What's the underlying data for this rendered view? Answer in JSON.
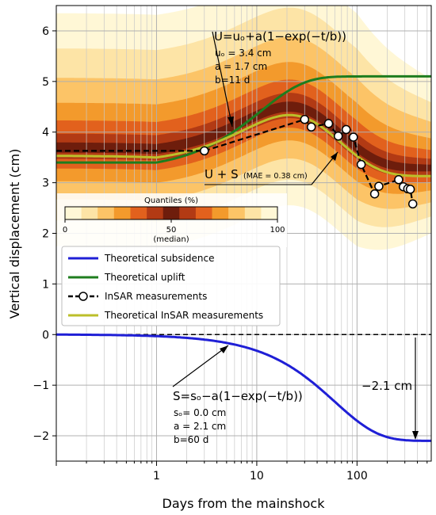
{
  "chart_data": {
    "type": "line",
    "xlabel": "Days from the mainshock",
    "ylabel": "Vertical displacement (cm)",
    "x_scale": "log",
    "xlim": [
      0.1,
      550
    ],
    "ylim": [
      -2.5,
      6.5
    ],
    "x_ticks": [
      1,
      10,
      100
    ],
    "x_tick_labels": [
      "1",
      "10",
      "100"
    ],
    "y_ticks": [
      -2,
      -1,
      0,
      1,
      2,
      3,
      4,
      5,
      6
    ],
    "y_tick_labels": [
      "−2",
      "−1",
      "0",
      "1",
      "2",
      "3",
      "4",
      "5",
      "6"
    ],
    "grid": true,
    "colors": {
      "subsidence": "#1f1fd6",
      "uplift": "#1e7d1e",
      "insar_model": "#bcbf2a",
      "measurements": "#000000",
      "quantile_bands": [
        "#fff7d6",
        "#fde4a6",
        "#fcc467",
        "#f39a2c",
        "#e2611d",
        "#b23a14",
        "#6e1d0c"
      ]
    },
    "quantile_legend": {
      "title": "Quantiles (%)",
      "tick_labels": [
        "0",
        "50",
        "100"
      ],
      "median_label": "(median)"
    },
    "legend": {
      "placement": "center-left",
      "entries": [
        {
          "label": "Theoretical subsidence",
          "color": "#1f1fd6",
          "style": "line"
        },
        {
          "label": "Theoretical uplift",
          "color": "#1e7d1e",
          "style": "line"
        },
        {
          "label": "InSAR measurements",
          "color": "#000000",
          "style": "dashed-markers"
        },
        {
          "label": "Theoretical InSAR measurements",
          "color": "#bcbf2a",
          "style": "line"
        }
      ]
    },
    "annotations": {
      "uplift_equation": "U=uₒ+a(1−exp(−t/b))",
      "uplift_params": [
        "uₒ = 3.4 cm",
        "a = 1.7 cm",
        "b=11 d"
      ],
      "sum_label": "U + S",
      "sum_mae": "(MAE = 0.38 cm)",
      "subsidence_equation": "S=sₒ−a(1−exp(−t/b))",
      "subsidence_params": [
        "sₒ= 0.0 cm",
        "a = 2.1 cm",
        "b=60 d"
      ],
      "offset_label": "−2.1 cm"
    },
    "models": {
      "uplift": {
        "u0": 3.4,
        "a": 1.7,
        "b": 11,
        "start_day": 1
      },
      "subsidence": {
        "s0": 0.0,
        "a": 2.1,
        "b": 60,
        "start_day": 0.1
      },
      "insar_baseline": 3.53
    },
    "measurements_pre": {
      "x": [
        0.1,
        2.2
      ],
      "y": [
        3.63,
        3.63
      ]
    },
    "measurements": {
      "x": [
        3,
        30,
        35,
        52,
        65,
        78,
        92,
        110,
        150,
        165,
        260,
        290,
        320,
        340,
        360
      ],
      "y": [
        3.63,
        4.25,
        4.1,
        4.17,
        3.92,
        4.05,
        3.9,
        3.36,
        2.78,
        2.93,
        3.06,
        2.92,
        2.88,
        2.87,
        2.58
      ]
    }
  }
}
